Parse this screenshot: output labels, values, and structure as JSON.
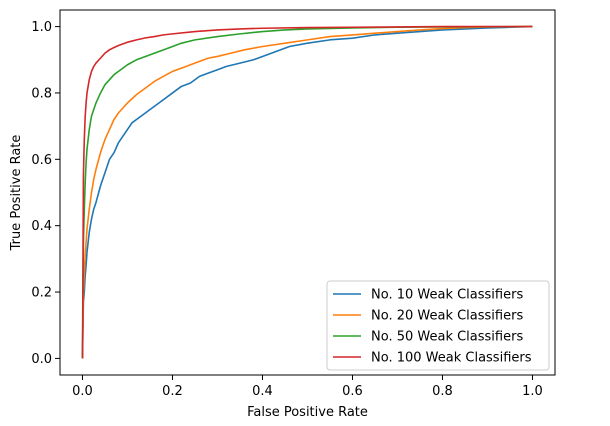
{
  "chart_data": {
    "type": "line",
    "xlabel": "False Positive Rate",
    "ylabel": "True Positive Rate",
    "xlim": [
      -0.05,
      1.05
    ],
    "ylim": [
      -0.05,
      1.05
    ],
    "x_ticks": [
      0.0,
      0.2,
      0.4,
      0.6,
      0.8,
      1.0
    ],
    "y_ticks": [
      0.0,
      0.2,
      0.4,
      0.6,
      0.8,
      1.0
    ],
    "x_tick_labels": [
      "0.0",
      "0.2",
      "0.4",
      "0.6",
      "0.8",
      "1.0"
    ],
    "y_tick_labels": [
      "0.0",
      "0.2",
      "0.4",
      "0.6",
      "0.8",
      "1.0"
    ],
    "grid": false,
    "legend_position": "bottom-right",
    "series": [
      {
        "name": "No. 10 Weak Classifiers",
        "color": "#1f77b4",
        "x": [
          0,
          0.002,
          0.004,
          0.006,
          0.008,
          0.01,
          0.015,
          0.02,
          0.025,
          0.03,
          0.04,
          0.05,
          0.06,
          0.07,
          0.08,
          0.09,
          0.1,
          0.11,
          0.12,
          0.14,
          0.16,
          0.18,
          0.2,
          0.22,
          0.24,
          0.26,
          0.28,
          0.3,
          0.32,
          0.35,
          0.38,
          0.4,
          0.43,
          0.46,
          0.5,
          0.55,
          0.6,
          0.65,
          0.7,
          0.75,
          0.8,
          0.85,
          0.9,
          0.95,
          1.0
        ],
        "y": [
          0,
          0.17,
          0.2,
          0.25,
          0.28,
          0.32,
          0.38,
          0.42,
          0.45,
          0.47,
          0.52,
          0.56,
          0.6,
          0.62,
          0.65,
          0.67,
          0.69,
          0.71,
          0.72,
          0.74,
          0.76,
          0.78,
          0.8,
          0.82,
          0.83,
          0.85,
          0.86,
          0.87,
          0.88,
          0.89,
          0.9,
          0.91,
          0.925,
          0.94,
          0.95,
          0.96,
          0.965,
          0.975,
          0.98,
          0.985,
          0.99,
          0.993,
          0.996,
          0.998,
          1.0
        ]
      },
      {
        "name": "No. 20 Weak Classifiers",
        "color": "#ff7f0e",
        "x": [
          0,
          0.002,
          0.004,
          0.006,
          0.008,
          0.01,
          0.015,
          0.02,
          0.025,
          0.03,
          0.04,
          0.05,
          0.06,
          0.07,
          0.08,
          0.09,
          0.1,
          0.12,
          0.14,
          0.16,
          0.18,
          0.2,
          0.22,
          0.24,
          0.26,
          0.28,
          0.3,
          0.33,
          0.36,
          0.4,
          0.45,
          0.5,
          0.55,
          0.6,
          0.65,
          0.7,
          0.75,
          0.8,
          0.85,
          0.9,
          1.0
        ],
        "y": [
          0,
          0.2,
          0.26,
          0.31,
          0.35,
          0.39,
          0.45,
          0.5,
          0.54,
          0.57,
          0.62,
          0.66,
          0.69,
          0.72,
          0.74,
          0.755,
          0.77,
          0.795,
          0.815,
          0.835,
          0.85,
          0.865,
          0.875,
          0.885,
          0.895,
          0.905,
          0.91,
          0.92,
          0.93,
          0.94,
          0.95,
          0.96,
          0.97,
          0.975,
          0.98,
          0.985,
          0.99,
          0.994,
          0.997,
          0.999,
          1.0
        ]
      },
      {
        "name": "No. 50 Weak Classifiers",
        "color": "#2ca02c",
        "x": [
          0,
          0.002,
          0.004,
          0.006,
          0.008,
          0.01,
          0.015,
          0.02,
          0.025,
          0.03,
          0.04,
          0.05,
          0.06,
          0.07,
          0.08,
          0.1,
          0.12,
          0.14,
          0.16,
          0.18,
          0.2,
          0.22,
          0.25,
          0.3,
          0.35,
          0.4,
          0.45,
          0.5,
          0.6,
          0.7,
          0.8,
          1.0
        ],
        "y": [
          0,
          0.35,
          0.45,
          0.53,
          0.59,
          0.63,
          0.69,
          0.73,
          0.75,
          0.77,
          0.8,
          0.825,
          0.84,
          0.855,
          0.865,
          0.885,
          0.9,
          0.91,
          0.92,
          0.93,
          0.94,
          0.95,
          0.96,
          0.97,
          0.978,
          0.985,
          0.99,
          0.993,
          0.996,
          0.998,
          0.999,
          1.0
        ]
      },
      {
        "name": "No. 100 Weak Classifiers",
        "color": "#d62728",
        "x": [
          0,
          0.002,
          0.004,
          0.006,
          0.008,
          0.01,
          0.015,
          0.02,
          0.025,
          0.03,
          0.04,
          0.05,
          0.06,
          0.07,
          0.08,
          0.1,
          0.12,
          0.14,
          0.16,
          0.18,
          0.2,
          0.25,
          0.3,
          0.35,
          0.4,
          0.5,
          0.6,
          0.7,
          0.8,
          1.0
        ],
        "y": [
          0,
          0.55,
          0.66,
          0.73,
          0.77,
          0.8,
          0.84,
          0.865,
          0.88,
          0.89,
          0.905,
          0.92,
          0.93,
          0.937,
          0.943,
          0.953,
          0.96,
          0.966,
          0.97,
          0.975,
          0.978,
          0.985,
          0.99,
          0.993,
          0.995,
          0.997,
          0.998,
          0.999,
          1.0,
          1.0
        ]
      }
    ]
  }
}
